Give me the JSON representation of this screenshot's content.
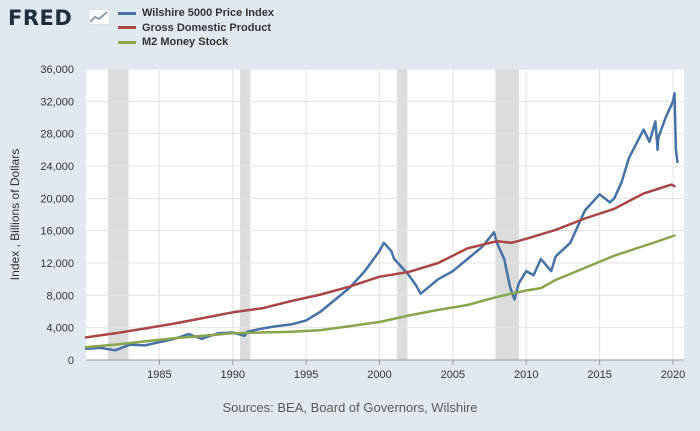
{
  "header": {
    "logo_text": "FRED",
    "logo_icon": "fred-chart-icon"
  },
  "chart_data": {
    "type": "line",
    "title": "",
    "xlabel": "",
    "ylabel": "Index , Billions of Dollars",
    "xlim": [
      1980.0,
      2020.75
    ],
    "ylim": [
      0,
      36000
    ],
    "grid": true,
    "legend_position": "top-left",
    "x_ticks": [
      1985,
      1990,
      1995,
      2000,
      2005,
      2010,
      2015,
      2020
    ],
    "y_ticks": [
      0,
      4000,
      8000,
      12000,
      16000,
      20000,
      24000,
      28000,
      32000,
      36000
    ],
    "y_tick_labels": [
      "0",
      "4,000",
      "8,000",
      "12,000",
      "16,000",
      "20,000",
      "24,000",
      "28,000",
      "32,000",
      "36,000"
    ],
    "recessions": [
      [
        1981.5,
        1982.9
      ],
      [
        1990.5,
        1991.2
      ],
      [
        2001.2,
        2001.9
      ],
      [
        2007.9,
        2009.5
      ]
    ],
    "recession_color": "#dcdcdc",
    "series": [
      {
        "name": "Wilshire 5000 Price Index",
        "color": "#4572a7",
        "points": [
          [
            1980,
            1400
          ],
          [
            1981,
            1500
          ],
          [
            1982,
            1200
          ],
          [
            1983,
            1900
          ],
          [
            1984,
            1800
          ],
          [
            1985,
            2200
          ],
          [
            1986,
            2600
          ],
          [
            1987,
            3200
          ],
          [
            1987.9,
            2600
          ],
          [
            1988,
            2700
          ],
          [
            1989,
            3300
          ],
          [
            1990,
            3400
          ],
          [
            1990.8,
            3000
          ],
          [
            1991,
            3500
          ],
          [
            1992,
            3900
          ],
          [
            1993,
            4200
          ],
          [
            1994,
            4400
          ],
          [
            1995,
            4900
          ],
          [
            1996,
            6000
          ],
          [
            1997,
            7500
          ],
          [
            1998,
            9000
          ],
          [
            1999,
            11000
          ],
          [
            2000,
            13500
          ],
          [
            2000.3,
            14500
          ],
          [
            2000.8,
            13500
          ],
          [
            2001,
            12500
          ],
          [
            2001.5,
            11500
          ],
          [
            2002,
            10500
          ],
          [
            2002.5,
            9200
          ],
          [
            2002.8,
            8200
          ],
          [
            2003,
            8500
          ],
          [
            2004,
            10000
          ],
          [
            2005,
            11000
          ],
          [
            2006,
            12500
          ],
          [
            2007,
            14000
          ],
          [
            2007.8,
            15800
          ],
          [
            2008,
            14500
          ],
          [
            2008.5,
            12500
          ],
          [
            2008.9,
            9000
          ],
          [
            2009.2,
            7500
          ],
          [
            2009.5,
            9500
          ],
          [
            2010,
            11000
          ],
          [
            2010.5,
            10500
          ],
          [
            2011,
            12500
          ],
          [
            2011.7,
            11000
          ],
          [
            2012,
            12800
          ],
          [
            2013,
            14500
          ],
          [
            2014,
            18500
          ],
          [
            2015,
            20500
          ],
          [
            2015.7,
            19500
          ],
          [
            2016,
            20000
          ],
          [
            2016.5,
            22000
          ],
          [
            2017,
            25000
          ],
          [
            2018,
            28500
          ],
          [
            2018.4,
            27000
          ],
          [
            2018.8,
            29500
          ],
          [
            2018.95,
            26000
          ],
          [
            2019,
            27500
          ],
          [
            2019.5,
            30000
          ],
          [
            2020,
            32000
          ],
          [
            2020.1,
            33000
          ],
          [
            2020.2,
            26000
          ],
          [
            2020.3,
            24500
          ]
        ]
      },
      {
        "name": "Gross Domestic Product",
        "color": "#aa4643",
        "points": [
          [
            1980,
            2800
          ],
          [
            1982,
            3300
          ],
          [
            1984,
            3900
          ],
          [
            1986,
            4500
          ],
          [
            1988,
            5200
          ],
          [
            1990,
            5900
          ],
          [
            1992,
            6400
          ],
          [
            1994,
            7300
          ],
          [
            1996,
            8100
          ],
          [
            1998,
            9100
          ],
          [
            2000,
            10300
          ],
          [
            2001,
            10600
          ],
          [
            2002,
            10900
          ],
          [
            2004,
            12000
          ],
          [
            2006,
            13800
          ],
          [
            2008,
            14700
          ],
          [
            2009,
            14500
          ],
          [
            2010,
            15000
          ],
          [
            2012,
            16100
          ],
          [
            2014,
            17500
          ],
          [
            2016,
            18700
          ],
          [
            2018,
            20600
          ],
          [
            2019.9,
            21700
          ],
          [
            2020.1,
            21500
          ]
        ]
      },
      {
        "name": "M2 Money Stock",
        "color": "#89a54e",
        "points": [
          [
            1980,
            1600
          ],
          [
            1982,
            1900
          ],
          [
            1984,
            2300
          ],
          [
            1986,
            2700
          ],
          [
            1988,
            3000
          ],
          [
            1990,
            3300
          ],
          [
            1992,
            3400
          ],
          [
            1994,
            3500
          ],
          [
            1996,
            3700
          ],
          [
            1998,
            4200
          ],
          [
            2000,
            4700
          ],
          [
            2002,
            5500
          ],
          [
            2004,
            6200
          ],
          [
            2006,
            6800
          ],
          [
            2008,
            7800
          ],
          [
            2010,
            8600
          ],
          [
            2011,
            8900
          ],
          [
            2012,
            9900
          ],
          [
            2014,
            11400
          ],
          [
            2016,
            12900
          ],
          [
            2018,
            14100
          ],
          [
            2019,
            14700
          ],
          [
            2020.1,
            15400
          ]
        ]
      }
    ]
  },
  "footer": {
    "source": "Sources: BEA, Board of Governors, Wilshire"
  }
}
